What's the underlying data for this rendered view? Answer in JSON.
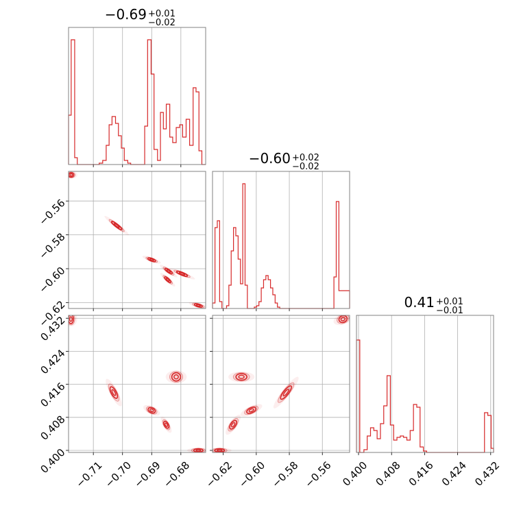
{
  "figure": {
    "type": "corner-plot"
  },
  "chart_data": [
    {
      "type": "histogram",
      "panel": "hist-p1",
      "title": {
        "main": "−0.69",
        "upper": "+0.01",
        "lower": "−0.02"
      },
      "xlim": [
        -0.7185,
        -0.6715
      ],
      "xticks": [
        -0.71,
        -0.7,
        -0.69,
        -0.68
      ],
      "color": "#d62728",
      "bins": [
        {
          "x0": -0.7185,
          "x1": -0.7176,
          "h": 0.36
        },
        {
          "x0": -0.7176,
          "x1": -0.7164,
          "h": 0.91
        },
        {
          "x0": -0.7164,
          "x1": -0.7155,
          "h": 0.05
        },
        {
          "x0": -0.7155,
          "x1": -0.708,
          "h": 0.0
        },
        {
          "x0": -0.708,
          "x1": -0.7068,
          "h": 0.01
        },
        {
          "x0": -0.7068,
          "x1": -0.7056,
          "h": 0.03
        },
        {
          "x0": -0.7056,
          "x1": -0.7046,
          "h": 0.14
        },
        {
          "x0": -0.7046,
          "x1": -0.7036,
          "h": 0.29
        },
        {
          "x0": -0.7036,
          "x1": -0.7024,
          "h": 0.35
        },
        {
          "x0": -0.7024,
          "x1": -0.7014,
          "h": 0.3
        },
        {
          "x0": -0.7014,
          "x1": -0.7004,
          "h": 0.21
        },
        {
          "x0": -0.7004,
          "x1": -0.6994,
          "h": 0.12
        },
        {
          "x0": -0.6994,
          "x1": -0.6982,
          "h": 0.03
        },
        {
          "x0": -0.6982,
          "x1": -0.6972,
          "h": 0.01
        },
        {
          "x0": -0.6972,
          "x1": -0.6924,
          "h": 0.0
        },
        {
          "x0": -0.6924,
          "x1": -0.6914,
          "h": 0.28
        },
        {
          "x0": -0.6914,
          "x1": -0.6902,
          "h": 0.91
        },
        {
          "x0": -0.6902,
          "x1": -0.6892,
          "h": 0.66
        },
        {
          "x0": -0.6892,
          "x1": -0.688,
          "h": 0.11
        },
        {
          "x0": -0.688,
          "x1": -0.687,
          "h": 0.03
        },
        {
          "x0": -0.687,
          "x1": -0.686,
          "h": 0.38
        },
        {
          "x0": -0.686,
          "x1": -0.685,
          "h": 0.26
        },
        {
          "x0": -0.685,
          "x1": -0.6838,
          "h": 0.44
        },
        {
          "x0": -0.6838,
          "x1": -0.6828,
          "h": 0.2
        },
        {
          "x0": -0.6828,
          "x1": -0.6816,
          "h": 0.16
        },
        {
          "x0": -0.6816,
          "x1": -0.6804,
          "h": 0.27
        },
        {
          "x0": -0.6804,
          "x1": -0.6794,
          "h": 0.29
        },
        {
          "x0": -0.6794,
          "x1": -0.6782,
          "h": 0.2
        },
        {
          "x0": -0.6782,
          "x1": -0.677,
          "h": 0.33
        },
        {
          "x0": -0.677,
          "x1": -0.6758,
          "h": 0.14
        },
        {
          "x0": -0.6758,
          "x1": -0.6748,
          "h": 0.56
        },
        {
          "x0": -0.6748,
          "x1": -0.6738,
          "h": 0.53
        },
        {
          "x0": -0.6738,
          "x1": -0.6728,
          "h": 0.1
        },
        {
          "x0": -0.6728,
          "x1": -0.6715,
          "h": 0.0
        }
      ]
    },
    {
      "type": "histogram",
      "panel": "hist-p2",
      "title": {
        "main": "−0.60",
        "upper": "+0.02",
        "lower": "−0.02"
      },
      "xlim": [
        -0.6265,
        -0.5435
      ],
      "xticks": [
        -0.62,
        -0.6,
        -0.58,
        -0.56
      ],
      "color": "#d62728",
      "bins": [
        {
          "x0": -0.6265,
          "x1": -0.625,
          "h": 0.04
        },
        {
          "x0": -0.625,
          "x1": -0.6236,
          "h": 0.59
        },
        {
          "x0": -0.6236,
          "x1": -0.6222,
          "h": 0.64
        },
        {
          "x0": -0.6222,
          "x1": -0.6208,
          "h": 0.05
        },
        {
          "x0": -0.6208,
          "x1": -0.6194,
          "h": 0.0
        },
        {
          "x0": -0.6194,
          "x1": -0.618,
          "h": 0.0
        },
        {
          "x0": -0.618,
          "x1": -0.6166,
          "h": 0.02
        },
        {
          "x0": -0.6166,
          "x1": -0.6152,
          "h": 0.17
        },
        {
          "x0": -0.6152,
          "x1": -0.6138,
          "h": 0.42
        },
        {
          "x0": -0.6138,
          "x1": -0.6124,
          "h": 0.59
        },
        {
          "x0": -0.6124,
          "x1": -0.611,
          "h": 0.53
        },
        {
          "x0": -0.611,
          "x1": -0.6096,
          "h": 0.36
        },
        {
          "x0": -0.6096,
          "x1": -0.6082,
          "h": 0.18
        },
        {
          "x0": -0.6082,
          "x1": -0.6068,
          "h": 0.91
        },
        {
          "x0": -0.6068,
          "x1": -0.6054,
          "h": 0.17
        },
        {
          "x0": -0.6054,
          "x1": -0.604,
          "h": 0.0
        },
        {
          "x0": -0.604,
          "x1": -0.6026,
          "h": 0.0
        },
        {
          "x0": -0.6026,
          "x1": -0.6012,
          "h": 0.0
        },
        {
          "x0": -0.6012,
          "x1": -0.5998,
          "h": 0.01
        },
        {
          "x0": -0.5998,
          "x1": -0.5984,
          "h": 0.02
        },
        {
          "x0": -0.5984,
          "x1": -0.597,
          "h": 0.05
        },
        {
          "x0": -0.597,
          "x1": -0.5956,
          "h": 0.15
        },
        {
          "x0": -0.5956,
          "x1": -0.5942,
          "h": 0.21
        },
        {
          "x0": -0.5942,
          "x1": -0.5928,
          "h": 0.24
        },
        {
          "x0": -0.5928,
          "x1": -0.5914,
          "h": 0.21
        },
        {
          "x0": -0.5914,
          "x1": -0.59,
          "h": 0.15
        },
        {
          "x0": -0.59,
          "x1": -0.5886,
          "h": 0.1
        },
        {
          "x0": -0.5886,
          "x1": -0.5872,
          "h": 0.04
        },
        {
          "x0": -0.5872,
          "x1": -0.5858,
          "h": 0.01
        },
        {
          "x0": -0.5858,
          "x1": -0.553,
          "h": 0.0
        },
        {
          "x0": -0.553,
          "x1": -0.5516,
          "h": 0.23
        },
        {
          "x0": -0.5516,
          "x1": -0.55,
          "h": 0.78
        },
        {
          "x0": -0.55,
          "x1": -0.5435,
          "h": 0.13
        }
      ]
    },
    {
      "type": "histogram",
      "panel": "hist-p3",
      "title": {
        "main": "0.41",
        "upper": "+0.01",
        "lower": "−0.01"
      },
      "xlim": [
        0.3995,
        0.4327
      ],
      "xticks": [
        0.4,
        0.408,
        0.416,
        0.424,
        0.432
      ],
      "color": "#d62728",
      "bins": [
        {
          "x0": 0.3995,
          "x1": 0.4003,
          "h": 0.82
        },
        {
          "x0": 0.4003,
          "x1": 0.4013,
          "h": 0.0
        },
        {
          "x0": 0.4013,
          "x1": 0.4021,
          "h": 0.02
        },
        {
          "x0": 0.4021,
          "x1": 0.4029,
          "h": 0.12
        },
        {
          "x0": 0.4029,
          "x1": 0.4037,
          "h": 0.18
        },
        {
          "x0": 0.4037,
          "x1": 0.4045,
          "h": 0.16
        },
        {
          "x0": 0.4045,
          "x1": 0.4053,
          "h": 0.1
        },
        {
          "x0": 0.4053,
          "x1": 0.4061,
          "h": 0.21
        },
        {
          "x0": 0.4061,
          "x1": 0.4069,
          "h": 0.34
        },
        {
          "x0": 0.4069,
          "x1": 0.4077,
          "h": 0.56
        },
        {
          "x0": 0.4077,
          "x1": 0.4085,
          "h": 0.2
        },
        {
          "x0": 0.4085,
          "x1": 0.4093,
          "h": 0.09
        },
        {
          "x0": 0.4093,
          "x1": 0.4101,
          "h": 0.11
        },
        {
          "x0": 0.4101,
          "x1": 0.4109,
          "h": 0.12
        },
        {
          "x0": 0.4109,
          "x1": 0.4117,
          "h": 0.11
        },
        {
          "x0": 0.4117,
          "x1": 0.4125,
          "h": 0.09
        },
        {
          "x0": 0.4125,
          "x1": 0.4133,
          "h": 0.16
        },
        {
          "x0": 0.4133,
          "x1": 0.4141,
          "h": 0.35
        },
        {
          "x0": 0.4141,
          "x1": 0.4149,
          "h": 0.33
        },
        {
          "x0": 0.4149,
          "x1": 0.4157,
          "h": 0.04
        },
        {
          "x0": 0.4157,
          "x1": 0.4165,
          "h": 0.01
        },
        {
          "x0": 0.4165,
          "x1": 0.4305,
          "h": 0.0
        },
        {
          "x0": 0.4305,
          "x1": 0.4313,
          "h": 0.29
        },
        {
          "x0": 0.4313,
          "x1": 0.4321,
          "h": 0.27
        },
        {
          "x0": 0.4321,
          "x1": 0.4327,
          "h": 0.03
        }
      ]
    },
    {
      "type": "contour",
      "panel": "contour-p1-p2",
      "xlim": [
        -0.7185,
        -0.6715
      ],
      "ylim": [
        -0.6235,
        -0.5425
      ],
      "xticks": [
        -0.71,
        -0.7,
        -0.69,
        -0.68
      ],
      "yticks": [
        -0.56,
        -0.58,
        -0.6,
        -0.62
      ],
      "color": "#d62728",
      "clusters": [
        {
          "cx": -0.7176,
          "cy": -0.5446,
          "rx": 0.0009,
          "ry": 0.0013,
          "angle": 0
        },
        {
          "cx": -0.702,
          "cy": -0.5745,
          "rx": 0.0022,
          "ry": 0.0006,
          "angle": 38
        },
        {
          "cx": -0.69,
          "cy": -0.5947,
          "rx": 0.0014,
          "ry": 0.0005,
          "angle": 20
        },
        {
          "cx": -0.6842,
          "cy": -0.6014,
          "rx": 0.0015,
          "ry": 0.0005,
          "angle": 35
        },
        {
          "cx": -0.6845,
          "cy": -0.6065,
          "rx": 0.0014,
          "ry": 0.0005,
          "angle": 42
        },
        {
          "cx": -0.6796,
          "cy": -0.603,
          "rx": 0.002,
          "ry": 0.0005,
          "angle": 22
        },
        {
          "cx": -0.674,
          "cy": -0.6217,
          "rx": 0.0014,
          "ry": 0.0005,
          "angle": 15
        }
      ]
    },
    {
      "type": "contour",
      "panel": "contour-p1-p3",
      "xlim": [
        -0.7185,
        -0.6715
      ],
      "ylim": [
        0.3995,
        0.4327
      ],
      "xticks": [
        -0.71,
        -0.7,
        -0.69,
        -0.68
      ],
      "yticks": [
        0.4,
        0.408,
        0.416,
        0.424,
        0.432
      ],
      "xticklabels": [
        "−0.71",
        "−0.70",
        "−0.69",
        "−0.68"
      ],
      "yticklabels": [
        "0.400",
        "0.408",
        "0.416",
        "0.424",
        "0.432"
      ],
      "color": "#d62728",
      "clusters": [
        {
          "cx": -0.7177,
          "cy": 0.4318,
          "rx": 0.0009,
          "ry": 0.0011,
          "angle": 0
        },
        {
          "cx": -0.703,
          "cy": 0.414,
          "rx": 0.0022,
          "ry": 0.0006,
          "angle": 62
        },
        {
          "cx": -0.69,
          "cy": 0.4097,
          "rx": 0.0013,
          "ry": 0.0006,
          "angle": 25
        },
        {
          "cx": -0.685,
          "cy": 0.4062,
          "rx": 0.0013,
          "ry": 0.0005,
          "angle": 60
        },
        {
          "cx": -0.6816,
          "cy": 0.4178,
          "rx": 0.0015,
          "ry": 0.001,
          "angle": 0
        },
        {
          "cx": -0.674,
          "cy": 0.4,
          "rx": 0.0016,
          "ry": 0.0004,
          "angle": 0
        }
      ]
    },
    {
      "type": "contour",
      "panel": "contour-p2-p3",
      "xlim": [
        -0.6265,
        -0.5435
      ],
      "ylim": [
        0.3995,
        0.4327
      ],
      "xticks": [
        -0.62,
        -0.6,
        -0.58,
        -0.56
      ],
      "yticks": [
        0.4,
        0.408,
        0.416,
        0.424,
        0.432
      ],
      "xticklabels": [
        "−0.62",
        "−0.60",
        "−0.58",
        "−0.56"
      ],
      "color": "#d62728",
      "clusters": [
        {
          "cx": -0.6222,
          "cy": 0.4,
          "rx": 0.003,
          "ry": 0.0004,
          "angle": 0
        },
        {
          "cx": -0.609,
          "cy": 0.4178,
          "rx": 0.0033,
          "ry": 0.0008,
          "angle": 0
        },
        {
          "cx": -0.603,
          "cy": 0.4097,
          "rx": 0.003,
          "ry": 0.0006,
          "angle": -25
        },
        {
          "cx": -0.614,
          "cy": 0.4062,
          "rx": 0.003,
          "ry": 0.0006,
          "angle": -55
        },
        {
          "cx": -0.582,
          "cy": 0.414,
          "rx": 0.005,
          "ry": 0.0006,
          "angle": -52
        },
        {
          "cx": -0.5475,
          "cy": 0.4318,
          "rx": 0.0025,
          "ry": 0.0008,
          "angle": -20
        }
      ]
    }
  ]
}
